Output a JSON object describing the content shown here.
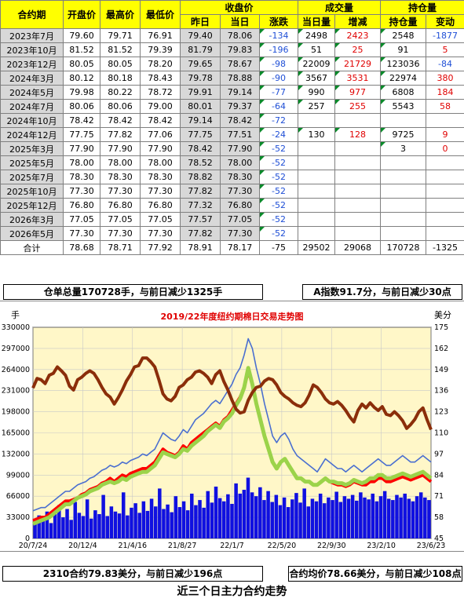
{
  "table": {
    "group_headers": {
      "close_price": "收盘价",
      "volume": "成交量",
      "open_interest": "持仓量"
    },
    "headers": [
      "合约期",
      "开盘价",
      "最高价",
      "最低价",
      "昨日",
      "当日",
      "涨跌",
      "当日量",
      "增减",
      "持仓量",
      "变动"
    ],
    "rows": [
      {
        "contract": "2023年7月",
        "open": "79.60",
        "high": "79.71",
        "low": "76.91",
        "prev": "79.40",
        "today": "78.06",
        "change": "-134",
        "vol": "2498",
        "vol_chg": "2423",
        "oi": "2548",
        "oi_chg": "-1877"
      },
      {
        "contract": "2023年10月",
        "open": "81.52",
        "high": "81.52",
        "low": "79.39",
        "prev": "81.79",
        "today": "79.83",
        "change": "-196",
        "vol": "51",
        "vol_chg": "25",
        "oi": "91",
        "oi_chg": "5"
      },
      {
        "contract": "2023年12月",
        "open": "80.05",
        "high": "80.05",
        "low": "78.20",
        "prev": "79.65",
        "today": "78.67",
        "change": "-98",
        "vol": "22009",
        "vol_chg": "21729",
        "oi": "123036",
        "oi_chg": "-84"
      },
      {
        "contract": "2024年3月",
        "open": "80.12",
        "high": "80.18",
        "low": "78.43",
        "prev": "79.78",
        "today": "78.88",
        "change": "-90",
        "vol": "3567",
        "vol_chg": "3531",
        "oi": "22974",
        "oi_chg": "380"
      },
      {
        "contract": "2024年5月",
        "open": "79.98",
        "high": "80.22",
        "low": "78.72",
        "prev": "79.91",
        "today": "79.14",
        "change": "-77",
        "vol": "990",
        "vol_chg": "977",
        "oi": "6808",
        "oi_chg": "184"
      },
      {
        "contract": "2024年7月",
        "open": "80.06",
        "high": "80.06",
        "low": "79.00",
        "prev": "80.01",
        "today": "79.37",
        "change": "-64",
        "vol": "257",
        "vol_chg": "255",
        "oi": "5543",
        "oi_chg": "58"
      },
      {
        "contract": "2024年10月",
        "open": "78.42",
        "high": "78.42",
        "low": "78.42",
        "prev": "79.14",
        "today": "78.42",
        "change": "-72",
        "vol": "",
        "vol_chg": "",
        "oi": "",
        "oi_chg": ""
      },
      {
        "contract": "2024年12月",
        "open": "77.75",
        "high": "77.82",
        "low": "77.06",
        "prev": "77.75",
        "today": "77.51",
        "change": "-24",
        "vol": "130",
        "vol_chg": "128",
        "oi": "9725",
        "oi_chg": "9"
      },
      {
        "contract": "2025年3月",
        "open": "77.90",
        "high": "77.90",
        "low": "77.90",
        "prev": "78.42",
        "today": "77.90",
        "change": "-52",
        "vol": "",
        "vol_chg": "",
        "oi": "3",
        "oi_chg": "0"
      },
      {
        "contract": "2025年5月",
        "open": "78.00",
        "high": "78.00",
        "low": "78.00",
        "prev": "78.52",
        "today": "78.00",
        "change": "-52",
        "vol": "",
        "vol_chg": "",
        "oi": "",
        "oi_chg": ""
      },
      {
        "contract": "2025年7月",
        "open": "78.30",
        "high": "78.30",
        "low": "78.30",
        "prev": "78.82",
        "today": "78.30",
        "change": "-52",
        "vol": "",
        "vol_chg": "",
        "oi": "",
        "oi_chg": ""
      },
      {
        "contract": "2025年10月",
        "open": "77.30",
        "high": "77.30",
        "low": "77.30",
        "prev": "77.82",
        "today": "77.30",
        "change": "-52",
        "vol": "",
        "vol_chg": "",
        "oi": "",
        "oi_chg": ""
      },
      {
        "contract": "2025年12月",
        "open": "76.80",
        "high": "76.80",
        "low": "76.80",
        "prev": "77.32",
        "today": "76.80",
        "change": "-52",
        "vol": "",
        "vol_chg": "",
        "oi": "",
        "oi_chg": ""
      },
      {
        "contract": "2026年3月",
        "open": "77.05",
        "high": "77.05",
        "low": "77.05",
        "prev": "77.57",
        "today": "77.05",
        "change": "-52",
        "vol": "",
        "vol_chg": "",
        "oi": "",
        "oi_chg": ""
      },
      {
        "contract": "2026年5月",
        "open": "77.30",
        "high": "77.30",
        "low": "77.30",
        "prev": "77.82",
        "today": "77.30",
        "change": "-52",
        "vol": "",
        "vol_chg": "",
        "oi": "",
        "oi_chg": ""
      }
    ],
    "total": {
      "contract": "合计",
      "open": "78.68",
      "high": "78.71",
      "low": "77.92",
      "prev": "78.91",
      "today": "78.17",
      "change": "-75",
      "vol": "29502",
      "vol_chg": "29068",
      "oi": "170728",
      "oi_chg": "-1325"
    }
  },
  "banners": {
    "top_left": "仓单总量170728手，与前日减少1325手",
    "top_right": "A指数91.7分，与前日减少30点",
    "bottom_left": "2310合约79.83美分，与前日减少196点",
    "bottom_right": "合约均价78.66美分，与前日减少108点"
  },
  "caption": "近三个日主力合约走势",
  "colors": {
    "header_bg": "#ffff00",
    "plot_bg": "#fff7c8",
    "index_line": "#8b2e0a",
    "high_line": "#4a6fd0",
    "close_line": "#ff0000",
    "low_line": "#9bd34a",
    "volume_bar": "#1010e0",
    "title_color": "#e00000",
    "change_neg": "#1f4fd6",
    "change_pos": "#e00000"
  },
  "chart_data": {
    "type": "line",
    "title": "2019/22年度纽约期棉日交易走势图",
    "left_axis_label": "手",
    "right_axis_label": "美分",
    "left_ylim": [
      0,
      330000
    ],
    "left_ticks": [
      "0",
      "33000",
      "66000",
      "99000",
      "132000",
      "165000",
      "198000",
      "231000",
      "264000",
      "297000",
      "330000"
    ],
    "right_ylim": [
      45,
      175
    ],
    "right_ticks": [
      "45",
      "58",
      "71",
      "84",
      "97",
      "110",
      "123",
      "136",
      "149",
      "162",
      "175"
    ],
    "x_ticks": [
      "20/7/24",
      "20/12/4",
      "21/4/16",
      "21/8/27",
      "22/1/7",
      "22/5/20",
      "22/9/30",
      "23/2/10",
      "23/6/23"
    ],
    "grid": true,
    "series": [
      {
        "axis": "left",
        "kind": "line",
        "role": "index_line",
        "values": [
          235000,
          250000,
          248000,
          242000,
          255000,
          258000,
          268000,
          262000,
          255000,
          238000,
          232000,
          248000,
          252000,
          258000,
          262000,
          258000,
          248000,
          236000,
          226000,
          221000,
          210000,
          220000,
          232000,
          246000,
          256000,
          268000,
          270000,
          282000,
          282000,
          276000,
          268000,
          248000,
          226000,
          218000,
          215000,
          222000,
          236000,
          240000,
          248000,
          252000,
          260000,
          262000,
          258000,
          252000,
          242000,
          256000,
          262000,
          245000,
          232000,
          216000,
          202000,
          196000,
          198000,
          216000,
          228000,
          236000,
          238000,
          246000,
          250000,
          248000,
          240000,
          228000,
          222000,
          218000,
          212000,
          208000,
          206000,
          212000,
          224000,
          240000,
          236000,
          228000,
          218000,
          212000,
          210000,
          214000,
          208000,
          200000,
          190000,
          182000,
          200000,
          210000,
          204000,
          212000,
          205000,
          200000,
          206000,
          194000,
          192000,
          198000,
          192000,
          184000,
          172000,
          178000,
          186000,
          198000,
          204000,
          186000,
          170000
        ]
      },
      {
        "axis": "right",
        "kind": "line",
        "role": "high_line",
        "values": [
          62,
          63,
          64,
          64,
          66,
          68,
          70,
          72,
          74,
          74,
          76,
          78,
          79,
          80,
          82,
          83,
          85,
          87,
          88,
          90,
          89,
          90,
          92,
          91,
          93,
          94,
          95,
          97,
          96,
          98,
          100,
          105,
          110,
          108,
          106,
          105,
          108,
          112,
          110,
          114,
          118,
          120,
          122,
          125,
          128,
          130,
          128,
          132,
          136,
          140,
          146,
          150,
          158,
          168,
          162,
          150,
          140,
          128,
          118,
          108,
          104,
          108,
          110,
          106,
          100,
          96,
          94,
          92,
          90,
          88,
          86,
          90,
          94,
          92,
          90,
          88,
          88,
          86,
          88,
          90,
          88,
          86,
          88,
          90,
          92,
          94,
          92,
          90,
          90,
          92,
          94,
          96,
          94,
          92,
          92,
          94,
          96,
          94,
          92
        ]
      },
      {
        "axis": "right",
        "kind": "line",
        "role": "close_line",
        "values": [
          56,
          57,
          58,
          58,
          60,
          62,
          64,
          66,
          68,
          68,
          69,
          70,
          72,
          73,
          75,
          76,
          77,
          79,
          80,
          82,
          80,
          82,
          84,
          83,
          85,
          86,
          87,
          88,
          88,
          90,
          92,
          96,
          100,
          98,
          97,
          96,
          98,
          102,
          100,
          104,
          106,
          108,
          110,
          112,
          114,
          116,
          114,
          118,
          120,
          124,
          128,
          132,
          138,
          148,
          140,
          128,
          118,
          108,
          100,
          92,
          88,
          92,
          94,
          90,
          86,
          82,
          82,
          80,
          80,
          78,
          78,
          80,
          82,
          80,
          79,
          78,
          78,
          77,
          78,
          80,
          79,
          78,
          78,
          80,
          80,
          82,
          82,
          80,
          80,
          81,
          82,
          83,
          82,
          81,
          82,
          83,
          84,
          82,
          80
        ]
      },
      {
        "axis": "right",
        "kind": "line",
        "role": "low_line",
        "values": [
          54,
          55,
          56,
          57,
          58,
          60,
          62,
          64,
          66,
          66,
          68,
          70,
          71,
          72,
          74,
          75,
          76,
          78,
          79,
          80,
          79,
          80,
          82,
          81,
          83,
          84,
          85,
          86,
          86,
          88,
          90,
          94,
          98,
          97,
          96,
          95,
          97,
          100,
          99,
          102,
          104,
          106,
          108,
          111,
          113,
          115,
          113,
          117,
          119,
          122,
          127,
          131,
          138,
          150,
          140,
          128,
          118,
          108,
          100,
          92,
          88,
          92,
          94,
          90,
          86,
          82,
          82,
          80,
          80,
          78,
          78,
          80,
          82,
          80,
          80,
          79,
          79,
          78,
          79,
          81,
          80,
          79,
          80,
          82,
          82,
          84,
          84,
          82,
          82,
          83,
          84,
          85,
          84,
          83,
          84,
          85,
          86,
          84,
          82
        ]
      },
      {
        "axis": "left",
        "kind": "bar",
        "role": "volume_bar",
        "values": [
          28000,
          36000,
          30000,
          42000,
          24000,
          38000,
          52000,
          33000,
          46000,
          29000,
          57000,
          40000,
          35000,
          61000,
          31000,
          44000,
          38000,
          68000,
          35000,
          50000,
          42000,
          39000,
          72000,
          36000,
          48000,
          55000,
          40000,
          58000,
          43000,
          62000,
          50000,
          78000,
          46000,
          53000,
          41000,
          66000,
          49000,
          58000,
          44000,
          70000,
          52000,
          60000,
          48000,
          74000,
          56000,
          81000,
          63000,
          58000,
          69000,
          54000,
          86000,
          70000,
          76000,
          95000,
          72000,
          66000,
          80000,
          60000,
          74000,
          57000,
          68000,
          52000,
          64000,
          49000,
          61000,
          71000,
          56000,
          78000,
          50000,
          62000,
          58000,
          70000,
          55000,
          64000,
          60000,
          73000,
          57000,
          66000,
          62000,
          68000,
          59000,
          72000,
          64000,
          61000,
          70000,
          58000,
          66000,
          74000,
          62000,
          60000,
          68000,
          64000,
          70000,
          62000,
          58000,
          66000,
          72000,
          64000,
          60000
        ]
      }
    ]
  }
}
